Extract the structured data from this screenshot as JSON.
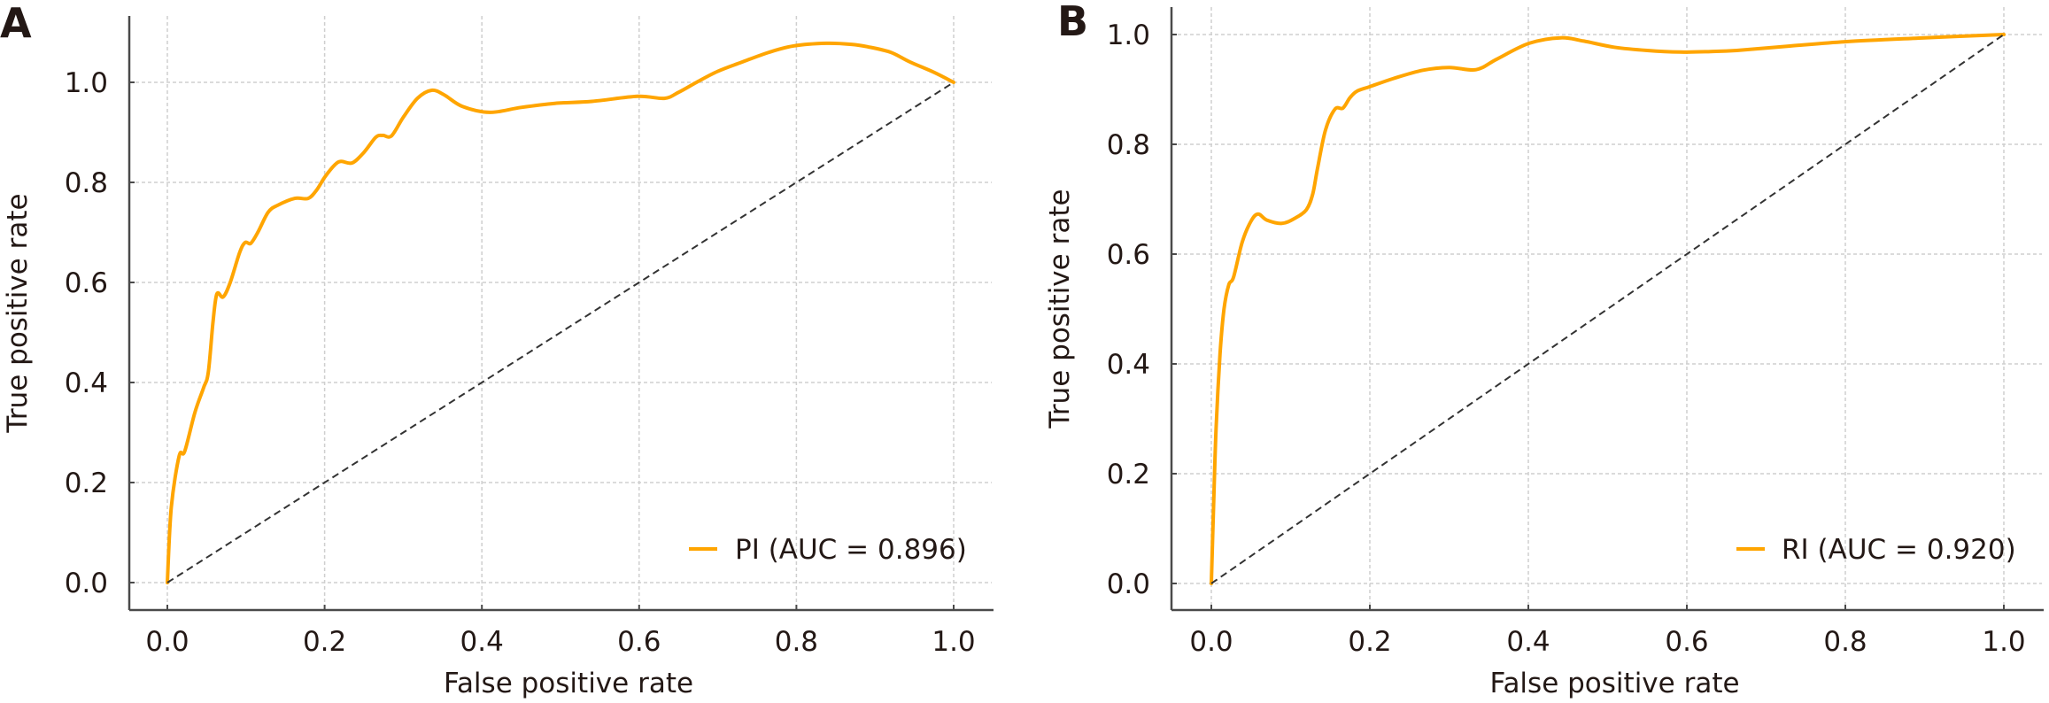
{
  "colors": {
    "roc_line": "#FFA500",
    "diagonal": "#333333",
    "text": "#231815"
  },
  "chart_data": [
    {
      "panel": "A",
      "type": "line",
      "title": "",
      "xlabel": "False positive rate",
      "ylabel": "True positive rate",
      "xlim": [
        -0.05,
        1.05
      ],
      "ylim": [
        -0.055,
        1.135
      ],
      "xticks": [
        0.0,
        0.2,
        0.4,
        0.6,
        0.8,
        1.0
      ],
      "xtick_labels": [
        "0.0",
        "0.2",
        "0.4",
        "0.6",
        "0.8",
        "1.0"
      ],
      "yticks": [
        0.0,
        0.2,
        0.4,
        0.6,
        0.8,
        1.0
      ],
      "ytick_labels": [
        "0.0",
        "0.2",
        "0.4",
        "0.6",
        "0.8",
        "1.0"
      ],
      "grid": true,
      "legend_position": "bottom-right",
      "series": [
        {
          "name": "PI (AUC = 0.896)",
          "label": "PI",
          "auc": 0.896,
          "x": [
            0.0,
            0.005,
            0.015,
            0.022,
            0.035,
            0.046,
            0.052,
            0.058,
            0.063,
            0.071,
            0.08,
            0.092,
            0.099,
            0.106,
            0.115,
            0.128,
            0.14,
            0.162,
            0.179,
            0.19,
            0.2,
            0.213,
            0.221,
            0.235,
            0.25,
            0.265,
            0.274,
            0.285,
            0.3,
            0.318,
            0.336,
            0.352,
            0.375,
            0.41,
            0.45,
            0.493,
            0.54,
            0.598,
            0.632,
            0.65,
            0.673,
            0.7,
            0.73,
            0.765,
            0.797,
            0.838,
            0.87,
            0.891,
            0.92,
            0.944,
            0.975,
            1.0
          ],
          "y": [
            0.0,
            0.15,
            0.253,
            0.262,
            0.34,
            0.389,
            0.42,
            0.52,
            0.577,
            0.571,
            0.6,
            0.66,
            0.68,
            0.678,
            0.7,
            0.74,
            0.754,
            0.768,
            0.768,
            0.785,
            0.81,
            0.835,
            0.842,
            0.839,
            0.86,
            0.89,
            0.894,
            0.893,
            0.93,
            0.968,
            0.984,
            0.975,
            0.952,
            0.94,
            0.95,
            0.958,
            0.962,
            0.972,
            0.968,
            0.98,
            1.0,
            1.022,
            1.04,
            1.06,
            1.073,
            1.078,
            1.076,
            1.071,
            1.06,
            1.041,
            1.02,
            1.0
          ]
        },
        {
          "name": "Reference",
          "x": [
            0.0,
            1.0
          ],
          "y": [
            0.0,
            1.0
          ],
          "style": "dashed"
        }
      ]
    },
    {
      "panel": "B",
      "type": "line",
      "title": "",
      "xlabel": "False positive rate",
      "ylabel": "True positive rate",
      "xlim": [
        -0.05,
        1.05
      ],
      "ylim": [
        -0.048,
        1.05
      ],
      "xticks": [
        0.0,
        0.2,
        0.4,
        0.6,
        0.8,
        1.0
      ],
      "xtick_labels": [
        "0.0",
        "0.2",
        "0.4",
        "0.6",
        "0.8",
        "1.0"
      ],
      "yticks": [
        0.0,
        0.2,
        0.4,
        0.6,
        0.8,
        1.0
      ],
      "ytick_labels": [
        "0.0",
        "0.2",
        "0.4",
        "0.6",
        "0.8",
        "1.0"
      ],
      "grid": true,
      "legend_position": "bottom-right",
      "series": [
        {
          "name": "RI (AUC = 0.920)",
          "label": "RI",
          "auc": 0.92,
          "x": [
            0.0,
            0.003,
            0.006,
            0.011,
            0.016,
            0.022,
            0.028,
            0.039,
            0.05,
            0.059,
            0.07,
            0.089,
            0.105,
            0.12,
            0.128,
            0.134,
            0.144,
            0.156,
            0.166,
            0.175,
            0.184,
            0.2,
            0.23,
            0.267,
            0.3,
            0.334,
            0.36,
            0.401,
            0.441,
            0.47,
            0.508,
            0.55,
            0.591,
            0.63,
            0.663,
            0.73,
            0.8,
            0.9,
            1.0
          ],
          "y": [
            0.0,
            0.15,
            0.284,
            0.418,
            0.5,
            0.544,
            0.558,
            0.622,
            0.66,
            0.673,
            0.662,
            0.656,
            0.665,
            0.681,
            0.71,
            0.756,
            0.826,
            0.864,
            0.866,
            0.885,
            0.897,
            0.905,
            0.92,
            0.935,
            0.94,
            0.936,
            0.955,
            0.984,
            0.994,
            0.988,
            0.977,
            0.971,
            0.968,
            0.969,
            0.971,
            0.979,
            0.987,
            0.994,
            1.0
          ]
        },
        {
          "name": "Reference",
          "x": [
            0.0,
            1.0
          ],
          "y": [
            0.0,
            1.0
          ],
          "style": "dashed"
        }
      ]
    }
  ]
}
